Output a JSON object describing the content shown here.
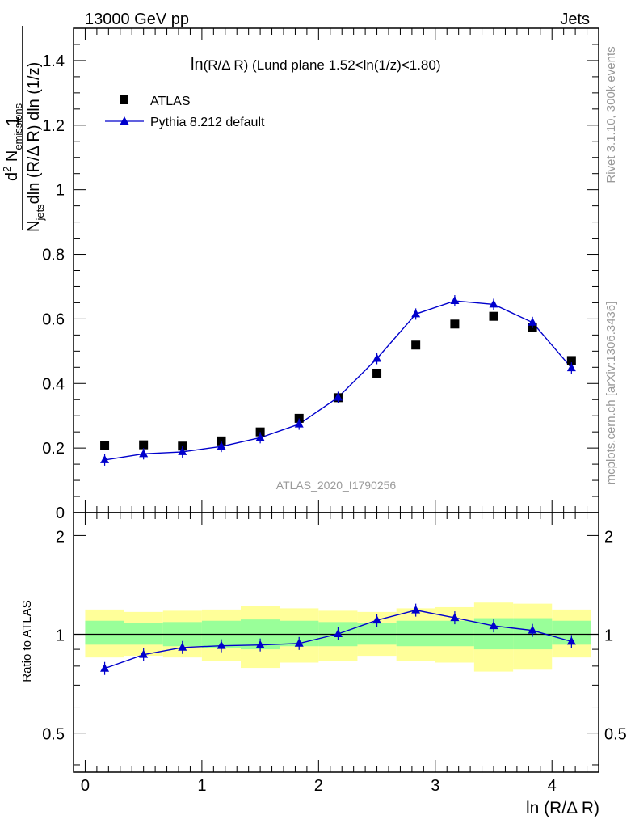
{
  "header": {
    "left": "13000 GeV pp",
    "right": "Jets"
  },
  "side_labels": {
    "rivet": "Rivet 3.1.10,  300k events",
    "mcplots": "mcplots.cern.ch [arXiv:1306.3436]"
  },
  "watermark": "ATLAS_2020_I1790256",
  "colors": {
    "mc": "#0000cc",
    "band_inner": "#99ff99",
    "band_outer": "#ffff99",
    "data": "#000000"
  },
  "chart_data": [
    {
      "type": "scatter",
      "title_main": "ln",
      "title_var": "(R/Δ R)",
      "title_rest": " (Lund plane 1.52<ln(1/z)<1.80)",
      "ylabel": {
        "one": "1",
        "n": "N",
        "jets": "jets",
        "mid": "dln (R/Δ R) dln (1/z)",
        "d2": "d",
        "exp": "2",
        "n2": " N",
        "emissions": "emissions"
      },
      "ylim": [
        0,
        1.5
      ],
      "xlim": [
        -0.1,
        4.4
      ],
      "yticks": [
        0,
        0.2,
        0.4,
        0.6,
        0.8,
        1,
        1.2,
        1.4
      ],
      "ytick_labels": [
        "0",
        "0.2",
        "0.4",
        "0.6",
        "0.8",
        "1",
        "1.2",
        "1.4"
      ],
      "legend": {
        "data_label": "ATLAS",
        "mc_label": "Pythia 8.212 default",
        "position": "top-left"
      },
      "x": [
        0.167,
        0.5,
        0.833,
        1.167,
        1.5,
        1.833,
        2.167,
        2.5,
        2.833,
        3.167,
        3.5,
        3.833,
        4.167
      ],
      "series": [
        {
          "name": "ATLAS",
          "values": [
            0.207,
            0.21,
            0.206,
            0.222,
            0.25,
            0.292,
            0.356,
            0.432,
            0.519,
            0.584,
            0.608,
            0.573,
            0.471
          ]
        },
        {
          "name": "Pythia 8.212 default",
          "values": [
            0.163,
            0.182,
            0.188,
            0.205,
            0.232,
            0.274,
            0.357,
            0.477,
            0.615,
            0.656,
            0.645,
            0.589,
            0.448
          ]
        }
      ]
    },
    {
      "type": "line",
      "ylabel": "Ratio to ATLAS",
      "xlabel": "ln (R/Δ R)",
      "ylim": [
        0.38,
        2.35
      ],
      "yscale": "log",
      "yticks": [
        0.5,
        1,
        2
      ],
      "ytick_labels": [
        "0.5",
        "1",
        "2"
      ],
      "xticks": [
        0,
        1,
        2,
        3,
        4
      ],
      "xtick_labels": [
        "0",
        "1",
        "2",
        "3",
        "4"
      ],
      "bins": [
        0,
        0.333,
        0.667,
        1.0,
        1.333,
        1.667,
        2.0,
        2.333,
        2.667,
        3.0,
        3.333,
        3.667,
        4.0,
        4.333
      ],
      "band_outer_lo": [
        0.85,
        0.86,
        0.85,
        0.83,
        0.79,
        0.82,
        0.83,
        0.86,
        0.83,
        0.82,
        0.77,
        0.78,
        0.85
      ],
      "band_outer_hi": [
        1.19,
        1.17,
        1.18,
        1.19,
        1.22,
        1.2,
        1.18,
        1.17,
        1.2,
        1.21,
        1.25,
        1.24,
        1.19
      ],
      "band_inner_lo": [
        0.93,
        0.93,
        0.92,
        0.91,
        0.9,
        0.92,
        0.92,
        0.93,
        0.92,
        0.92,
        0.9,
        0.9,
        0.93
      ],
      "band_inner_hi": [
        1.1,
        1.08,
        1.09,
        1.1,
        1.11,
        1.1,
        1.09,
        1.08,
        1.1,
        1.1,
        1.12,
        1.12,
        1.1
      ],
      "ratio": [
        0.787,
        0.867,
        0.912,
        0.923,
        0.928,
        0.938,
        1.003,
        1.104,
        1.185,
        1.123,
        1.061,
        1.028,
        0.951
      ]
    }
  ]
}
